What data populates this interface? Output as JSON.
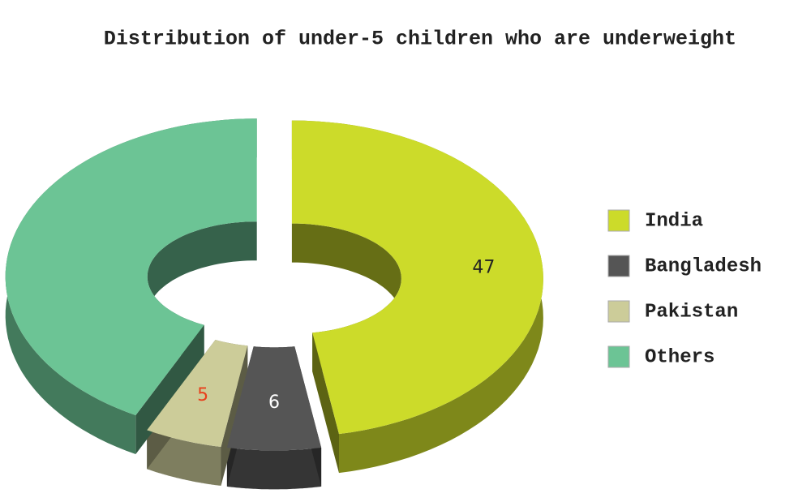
{
  "chart_data": {
    "type": "donut3d",
    "title": "Distribution of under-5 children who are underweight",
    "categories": [
      "India",
      "Bangladesh",
      "Pakistan",
      "Others"
    ],
    "values": [
      47,
      6,
      5,
      42
    ],
    "value_labels": [
      "47",
      "6",
      "5",
      null
    ],
    "label_colors": [
      "#222222",
      "#ffffff",
      "#e8401c",
      null
    ],
    "colors": [
      "#ccdb2a",
      "#555555",
      "#cccc99",
      "#6cc495"
    ],
    "legend": "right"
  }
}
